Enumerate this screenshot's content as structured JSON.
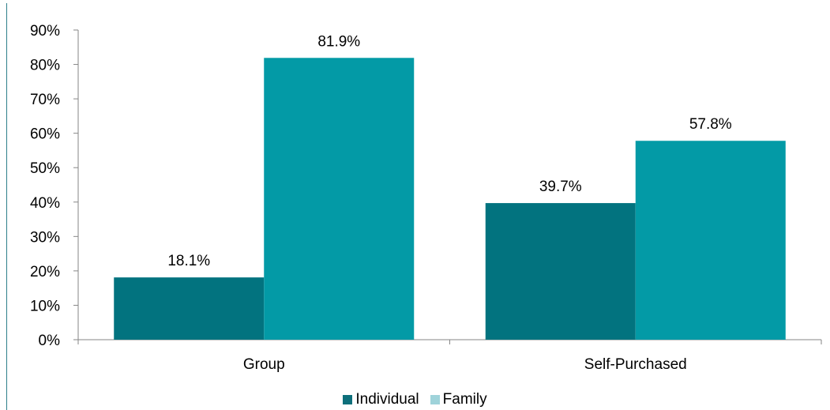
{
  "chart_data": {
    "type": "bar",
    "categories": [
      "Group",
      "Self-Purchased"
    ],
    "series": [
      {
        "name": "Individual",
        "values": [
          18.1,
          39.7
        ],
        "labels": [
          "18.1%",
          "39.7%"
        ],
        "color": "#02737f",
        "legend_color": "#0e6f7b"
      },
      {
        "name": "Family",
        "values": [
          81.9,
          57.8
        ],
        "labels": [
          "81.9%",
          "57.8%"
        ],
        "color": "#039aa6",
        "legend_color": "#9fd3da"
      }
    ],
    "ylim": [
      0,
      90
    ],
    "yticks": [
      0,
      10,
      20,
      30,
      40,
      50,
      60,
      70,
      80,
      90
    ],
    "ytick_labels": [
      "0%",
      "10%",
      "20%",
      "30%",
      "40%",
      "50%",
      "60%",
      "70%",
      "80%",
      "90%"
    ],
    "title": "",
    "xlabel": "",
    "ylabel": "",
    "legend_position": "bottom",
    "grid": false
  }
}
